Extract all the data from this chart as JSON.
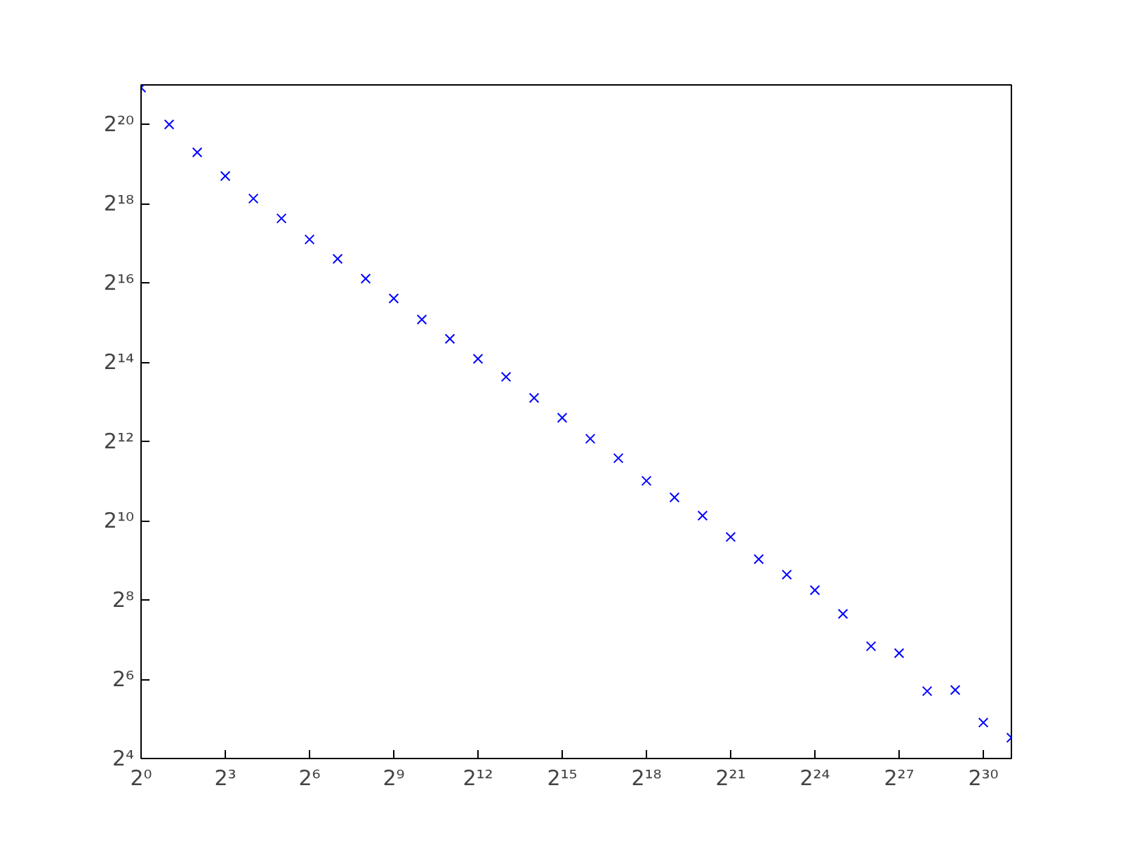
{
  "chart_data": {
    "type": "scatter",
    "log": "xy",
    "grid": false,
    "marker": "cross",
    "x": [
      1,
      2,
      4,
      8,
      16,
      32,
      64,
      128,
      256,
      512,
      1024,
      2048,
      4096,
      8192,
      16384,
      32768,
      65536,
      131072,
      262144,
      524288,
      1048576,
      2097152,
      4194304,
      8388608,
      16777216,
      33554432,
      67108864,
      134217728,
      268435456,
      536870912,
      1073741824,
      2147483648
    ],
    "series": [
      {
        "color": "#0000ff",
        "values": [
          2000000,
          1050000,
          645000,
          426000,
          287000,
          203000,
          140500,
          100000,
          70700,
          50000,
          34600,
          24700,
          17400,
          12700,
          8780,
          6210,
          4300,
          3060,
          2060,
          1540,
          1120,
          771,
          523,
          399,
          304,
          201,
          114,
          101,
          52,
          53,
          30,
          23
        ]
      }
    ],
    "xlim": [
      1,
      2147483648
    ],
    "xticks": [
      {
        "value": 1,
        "label": "2⁰"
      },
      {
        "value": 8,
        "label": "2³"
      },
      {
        "value": 64,
        "label": "2⁶"
      },
      {
        "value": 512,
        "label": "2⁹"
      },
      {
        "value": 4096,
        "label": "2¹²"
      },
      {
        "value": 32768,
        "label": "2¹⁵"
      },
      {
        "value": 262144,
        "label": "2¹⁸"
      },
      {
        "value": 2097152,
        "label": "2²¹"
      },
      {
        "value": 16777216,
        "label": "2²⁴"
      },
      {
        "value": 134217728,
        "label": "2²⁷"
      },
      {
        "value": 1073741824,
        "label": "2³⁰"
      }
    ],
    "ylim": [
      16,
      2097152
    ],
    "yticks": [
      {
        "value": 16,
        "label": "2⁴"
      },
      {
        "value": 64,
        "label": "2⁶"
      },
      {
        "value": 256,
        "label": "2⁸"
      },
      {
        "value": 1024,
        "label": "2¹⁰"
      },
      {
        "value": 4096,
        "label": "2¹²"
      },
      {
        "value": 16384,
        "label": "2¹⁴"
      },
      {
        "value": 65536,
        "label": "2¹⁶"
      },
      {
        "value": 262144,
        "label": "2¹⁸"
      },
      {
        "value": 1048576,
        "label": "2²⁰"
      }
    ]
  }
}
